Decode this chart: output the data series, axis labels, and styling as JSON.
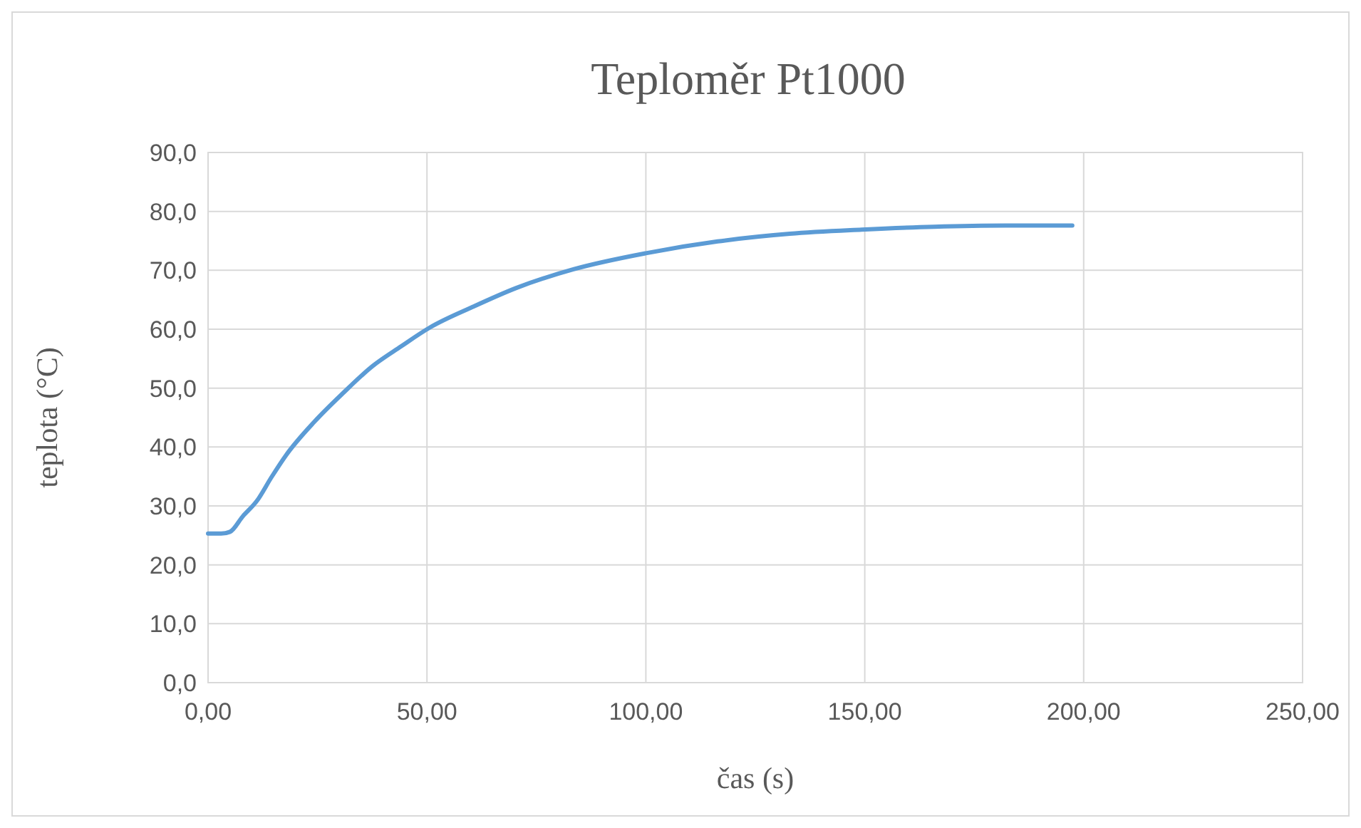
{
  "chart_data": {
    "type": "line",
    "title": "Teploměr Pt1000",
    "xlabel": "čas (s)",
    "ylabel": "teplota (°C)",
    "xlim": [
      0,
      250
    ],
    "ylim": [
      0,
      90
    ],
    "xticks": [
      {
        "value": 0,
        "label": "0,00"
      },
      {
        "value": 50,
        "label": "50,00"
      },
      {
        "value": 100,
        "label": "100,00"
      },
      {
        "value": 150,
        "label": "150,00"
      },
      {
        "value": 200,
        "label": "200,00"
      },
      {
        "value": 250,
        "label": "250,00"
      }
    ],
    "yticks": [
      {
        "value": 0,
        "label": "0,0"
      },
      {
        "value": 10,
        "label": "10,0"
      },
      {
        "value": 20,
        "label": "20,0"
      },
      {
        "value": 30,
        "label": "30,0"
      },
      {
        "value": 40,
        "label": "40,0"
      },
      {
        "value": 50,
        "label": "50,0"
      },
      {
        "value": 60,
        "label": "60,0"
      },
      {
        "value": 70,
        "label": "70,0"
      },
      {
        "value": 80,
        "label": "80,0"
      },
      {
        "value": 90,
        "label": "90,0"
      }
    ],
    "grid": true,
    "marker": "none",
    "line_style": "solid",
    "series": [
      {
        "color": "#5b9bd5",
        "x": [
          0,
          3,
          5,
          7.9,
          11.2,
          14.5,
          17.8,
          24.3,
          30.9,
          37.5,
          44.1,
          50.7,
          60.5,
          70.4,
          83.6,
          100,
          116.4,
          132.9,
          149.3,
          165.8,
          182.2,
          197.4
        ],
        "values": [
          25.3,
          25.3,
          25.6,
          28.2,
          30.9,
          34.9,
          38.6,
          44.3,
          49.2,
          53.7,
          57.1,
          60.3,
          63.8,
          67,
          70.2,
          72.9,
          74.9,
          76.2,
          76.9,
          77.4,
          77.6,
          77.6
        ]
      }
    ]
  }
}
